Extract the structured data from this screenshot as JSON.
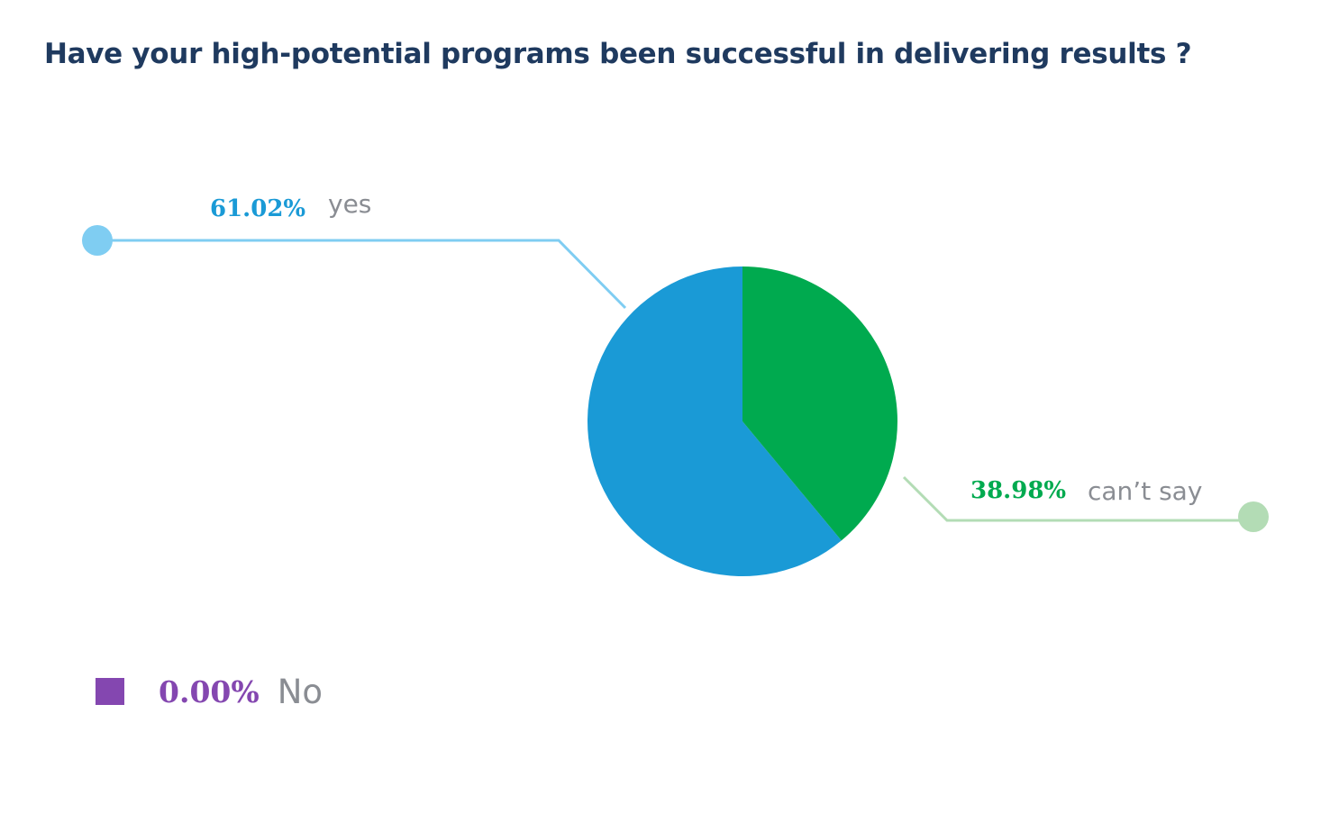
{
  "chart_data": {
    "type": "pie",
    "title": "Have your high-potential programs been successful in delivering results ?",
    "slices": [
      {
        "label": "yes",
        "value": 61.02,
        "display": "61.02%",
        "color": "#1a9ad6",
        "leader_color": "#7fcdf2"
      },
      {
        "label": "can’t say",
        "value": 38.98,
        "display": "38.98%",
        "color": "#00aa4f",
        "leader_color": "#b3dcb5"
      },
      {
        "label": "No",
        "value": 0.0,
        "display": "0.00%",
        "color": "#8447b0"
      }
    ]
  }
}
